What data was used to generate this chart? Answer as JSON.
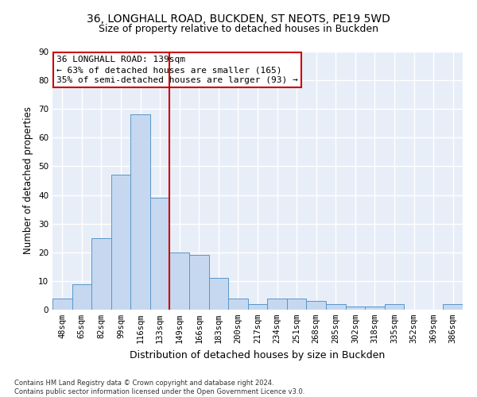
{
  "title1": "36, LONGHALL ROAD, BUCKDEN, ST NEOTS, PE19 5WD",
  "title2": "Size of property relative to detached houses in Buckden",
  "xlabel": "Distribution of detached houses by size in Buckden",
  "ylabel": "Number of detached properties",
  "bar_labels": [
    "48sqm",
    "65sqm",
    "82sqm",
    "99sqm",
    "116sqm",
    "133sqm",
    "149sqm",
    "166sqm",
    "183sqm",
    "200sqm",
    "217sqm",
    "234sqm",
    "251sqm",
    "268sqm",
    "285sqm",
    "302sqm",
    "318sqm",
    "335sqm",
    "352sqm",
    "369sqm",
    "386sqm"
  ],
  "bar_heights": [
    4,
    9,
    25,
    47,
    68,
    39,
    20,
    19,
    11,
    4,
    2,
    4,
    4,
    3,
    2,
    1,
    1,
    2,
    0,
    0,
    2
  ],
  "bar_color": "#c5d8f0",
  "bar_edge_color": "#5a96c8",
  "vline_x": 5.5,
  "vline_color": "#cc0000",
  "annotation_line1": "36 LONGHALL ROAD: 139sqm",
  "annotation_line2": "← 63% of detached houses are smaller (165)",
  "annotation_line3": "35% of semi-detached houses are larger (93) →",
  "annotation_box_color": "#cc0000",
  "ylim": [
    0,
    90
  ],
  "yticks": [
    0,
    10,
    20,
    30,
    40,
    50,
    60,
    70,
    80,
    90
  ],
  "footnote": "Contains HM Land Registry data © Crown copyright and database right 2024.\nContains public sector information licensed under the Open Government Licence v3.0.",
  "bg_color": "#e8eef8",
  "grid_color": "#ffffff",
  "title1_fontsize": 10,
  "title2_fontsize": 9,
  "xlabel_fontsize": 9,
  "ylabel_fontsize": 8.5,
  "tick_fontsize": 7.5,
  "annotation_fontsize": 8,
  "footnote_fontsize": 6
}
